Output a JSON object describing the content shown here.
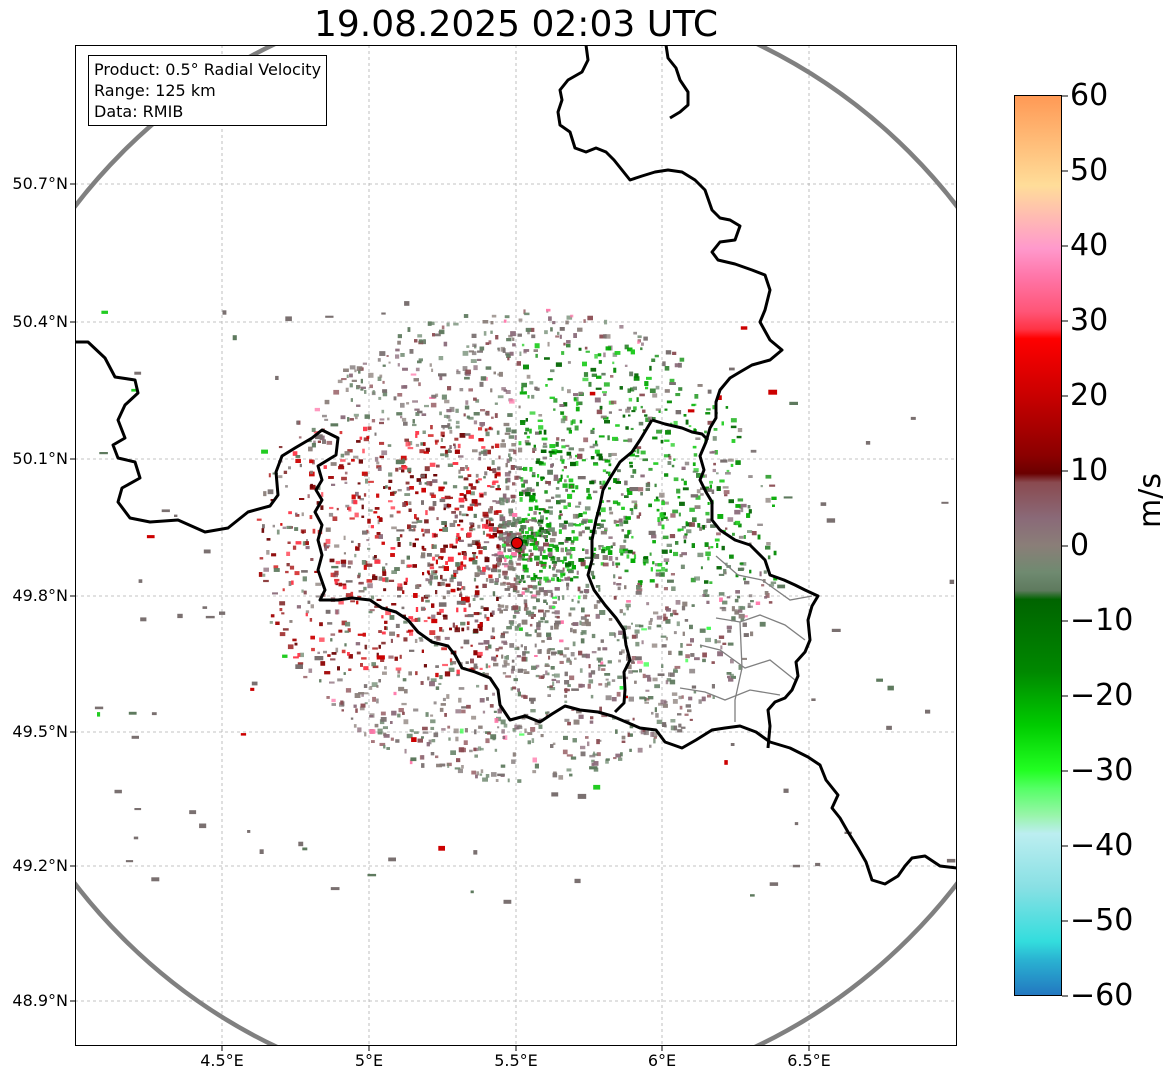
{
  "title": "19.08.2025 02:03 UTC",
  "info": {
    "product": "Product: 0.5° Radial Velocity",
    "range": "Range: 125 km",
    "data": "Data: RMIB"
  },
  "lat_labels": [
    "50.7°N",
    "50.4°N",
    "50.1°N",
    "49.8°N",
    "49.5°N",
    "49.2°N",
    "48.9°N"
  ],
  "lon_labels": [
    "4.5°E",
    "5°E",
    "5.5°E",
    "6°E",
    "6.5°E"
  ],
  "colorbar": {
    "label": "m/s",
    "ticks": [
      "60",
      "50",
      "40",
      "30",
      "20",
      "10",
      "0",
      "−10",
      "−20",
      "−30",
      "−40",
      "−50",
      "−60"
    ],
    "range": [
      -60,
      60
    ]
  },
  "radar": {
    "site_lon": 5.5,
    "site_lat": 49.915,
    "range_km": 125
  },
  "colors": {
    "range_ring": "#808080",
    "site_marker": "#e00000",
    "border": "#000000",
    "grid": "#b0b0b0"
  }
}
